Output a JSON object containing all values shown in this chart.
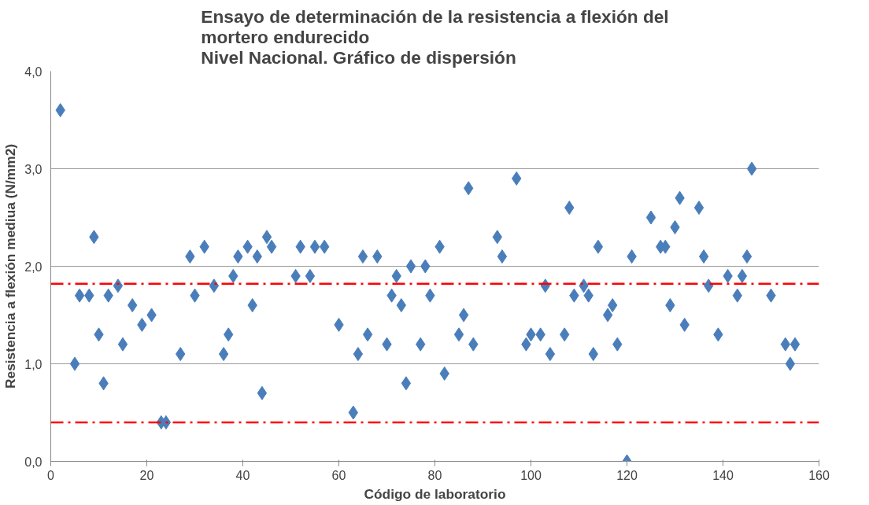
{
  "chart_data": {
    "type": "scatter",
    "title": "Ensayo de determinación de la resistencia a flexión del mortero endurecido\nNivel Nacional. Gráfico de dispersión",
    "xlabel": "Código de laboratorio",
    "ylabel": "Resistencia a flexión mediua (N/mm2)",
    "x": [
      2,
      5,
      6,
      8,
      9,
      10,
      11,
      12,
      14,
      15,
      17,
      19,
      21,
      23,
      24,
      27,
      29,
      30,
      32,
      34,
      36,
      37,
      38,
      39,
      41,
      42,
      43,
      44,
      45,
      46,
      51,
      52,
      54,
      55,
      57,
      60,
      63,
      64,
      65,
      66,
      68,
      70,
      71,
      72,
      73,
      74,
      75,
      77,
      78,
      79,
      81,
      82,
      85,
      86,
      87,
      88,
      93,
      94,
      97,
      99,
      100,
      102,
      103,
      104,
      107,
      108,
      109,
      111,
      112,
      113,
      114,
      116,
      117,
      118,
      120,
      121,
      125,
      127,
      128,
      129,
      130,
      131,
      132,
      135,
      136,
      137,
      139,
      141,
      143,
      144,
      145,
      146,
      150,
      153,
      154,
      155
    ],
    "series": [
      {
        "color": "#4a7ebb",
        "values": [
          3.6,
          1.0,
          1.7,
          1.7,
          2.3,
          1.3,
          0.8,
          1.7,
          1.8,
          1.2,
          1.6,
          1.4,
          1.5,
          0.4,
          0.4,
          1.1,
          2.1,
          1.7,
          2.2,
          1.8,
          1.1,
          1.3,
          1.9,
          2.1,
          2.2,
          1.6,
          2.1,
          0.7,
          2.3,
          2.2,
          1.9,
          2.2,
          1.9,
          2.2,
          2.2,
          1.4,
          0.5,
          1.1,
          2.1,
          1.3,
          2.1,
          1.2,
          1.7,
          1.9,
          1.6,
          0.8,
          2.0,
          1.2,
          2.0,
          1.7,
          2.2,
          0.9,
          1.3,
          1.5,
          2.8,
          1.2,
          2.3,
          2.1,
          2.9,
          1.2,
          1.3,
          1.3,
          1.8,
          1.1,
          1.3,
          2.6,
          1.7,
          1.8,
          1.7,
          1.1,
          2.2,
          1.5,
          1.6,
          1.2,
          0.0,
          2.1,
          2.5,
          2.2,
          2.2,
          1.6,
          2.4,
          2.7,
          1.4,
          2.6,
          2.1,
          1.8,
          1.3,
          1.9,
          1.7,
          1.9,
          2.1,
          3.0,
          1.7,
          1.2,
          1.0,
          1.2
        ]
      }
    ],
    "marker": "diamond",
    "xlim": [
      0,
      160
    ],
    "xticks": [
      0,
      20,
      40,
      60,
      80,
      100,
      120,
      140,
      160
    ],
    "ylim": [
      0,
      4
    ],
    "yticks": [
      {
        "value": 0,
        "label": "0,0"
      },
      {
        "value": 1,
        "label": "1,0"
      },
      {
        "value": 2,
        "label": "2,0"
      },
      {
        "value": 3,
        "label": "3,0"
      },
      {
        "value": 4,
        "label": "4,0"
      }
    ],
    "grid": "y",
    "ref_lines": [
      {
        "axis": "y",
        "value": 1.82,
        "color": "#ff0000",
        "line_style": "dashdot"
      },
      {
        "axis": "y",
        "value": 0.4,
        "color": "#ff0000",
        "line_style": "dashdot"
      }
    ]
  }
}
